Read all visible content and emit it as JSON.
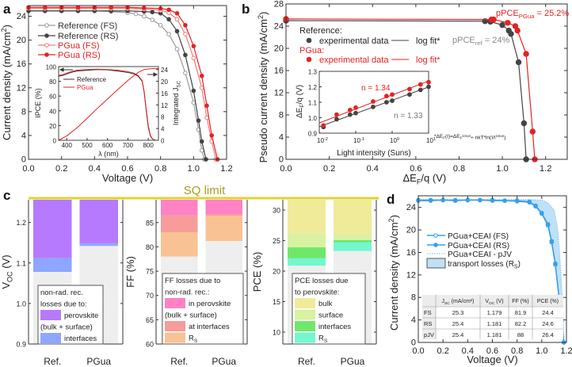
{
  "panel_labels": {
    "a": "a",
    "b": "b",
    "c": "c",
    "d": "d"
  },
  "colors": {
    "ref_fs": "#9a9a9a",
    "ref_rs": "#444444",
    "pgua_fs": "#f27b7b",
    "pgua_rs": "#e52222",
    "sq": "#e2d232",
    "sq_text": "#a8a020",
    "base": "#eeeeee",
    "voc_perovskite": "#b57aff",
    "voc_interfaces": "#8ea6ff",
    "ff_perovskite": "#ff82c4",
    "ff_interfaces": "#f89b9b",
    "ff_rs": "#f8c294",
    "pce_bulk": "#f0eb98",
    "pce_surface": "#d9f1a2",
    "pce_interfaces": "#6fe86a",
    "pce_rs": "#72f7cf",
    "d_line": "#37a0ea",
    "d_pjv": "#86c8f2",
    "d_fill": "#bfe1f8"
  },
  "chart_data": [
    {
      "id": "a",
      "type": "line",
      "xlabel": "Voltage (V)",
      "ylabel": "Current density (mA/cm²)",
      "xlim": [
        0,
        1.2
      ],
      "ylim": [
        0,
        25.8
      ],
      "xticks": [
        "0.0",
        "0.2",
        "0.4",
        "0.6",
        "0.8",
        "1.0",
        "1.2"
      ],
      "yticks": [
        "0",
        "4",
        "8",
        "12",
        "16",
        "20",
        "24"
      ],
      "series": [
        {
          "name": "Reference (FS)",
          "marker": "open-circle",
          "x": [
            0,
            0.1,
            0.2,
            0.3,
            0.4,
            0.5,
            0.6,
            0.65,
            0.7,
            0.75,
            0.8,
            0.85,
            0.9,
            0.95,
            1.0,
            1.03,
            1.05,
            1.065
          ],
          "y": [
            24.9,
            24.9,
            24.9,
            24.9,
            24.9,
            24.8,
            24.6,
            24.4,
            24.0,
            23.4,
            22.5,
            21.0,
            18.5,
            14.5,
            9.5,
            5.0,
            1.5,
            0
          ]
        },
        {
          "name": "Reference (RS)",
          "marker": "filled-circle",
          "x": [
            0,
            0.1,
            0.2,
            0.3,
            0.4,
            0.5,
            0.6,
            0.7,
            0.75,
            0.8,
            0.85,
            0.9,
            0.95,
            1.0,
            1.03,
            1.05,
            1.075
          ],
          "y": [
            24.9,
            24.9,
            24.9,
            24.9,
            24.9,
            24.9,
            24.9,
            24.8,
            24.7,
            24.5,
            23.5,
            21.5,
            17.5,
            11.5,
            6.5,
            3.0,
            0
          ]
        },
        {
          "name": "PGua (FS)",
          "marker": "open-circle",
          "x": [
            0,
            0.1,
            0.2,
            0.3,
            0.4,
            0.5,
            0.6,
            0.7,
            0.8,
            0.85,
            0.9,
            0.95,
            1.0,
            1.05,
            1.08,
            1.11,
            1.135
          ],
          "y": [
            25.3,
            25.3,
            25.3,
            25.3,
            25.3,
            25.3,
            25.3,
            25.2,
            25.0,
            24.6,
            23.5,
            21.0,
            17.0,
            12.0,
            7.0,
            3.0,
            0
          ]
        },
        {
          "name": "PGua (RS)",
          "marker": "filled-circle",
          "x": [
            0,
            0.1,
            0.2,
            0.3,
            0.4,
            0.5,
            0.6,
            0.7,
            0.8,
            0.85,
            0.9,
            0.95,
            1.0,
            1.05,
            1.08,
            1.11,
            1.145
          ],
          "y": [
            25.5,
            25.5,
            25.5,
            25.5,
            25.5,
            25.5,
            25.5,
            25.4,
            25.3,
            25.1,
            24.5,
            22.5,
            19.0,
            14.0,
            9.0,
            4.0,
            0
          ]
        }
      ],
      "inset": {
        "type": "line",
        "xlabel": "λ (nm)",
        "ylabel": "IPCE (%)",
        "y2label_main": "Integrated J",
        "y2label_sub": "SC",
        "xlim": [
          360,
          850
        ],
        "ylim": [
          0,
          100
        ],
        "y2lim": [
          0,
          25
        ],
        "xticks": [
          "400",
          "500",
          "600",
          "700",
          "800"
        ],
        "yticks": [
          "0",
          "20",
          "40",
          "60",
          "80",
          "100"
        ],
        "y2ticks": [
          "0",
          "4",
          "8",
          "12",
          "16",
          "20",
          "24"
        ],
        "series": [
          {
            "name": "Reference",
            "x": [
              360,
              380,
              420,
              450,
              500,
              550,
              600,
              650,
              700,
              730,
              750,
              770,
              780,
              790,
              800,
              810,
              820,
              835
            ],
            "y": [
              87,
              88,
              92,
              94,
              95,
              96,
              95.5,
              94,
              92,
              90,
              87,
              80,
              65,
              40,
              18,
              6,
              2,
              0
            ]
          },
          {
            "name": "PGua",
            "x": [
              360,
              380,
              420,
              450,
              500,
              550,
              600,
              650,
              700,
              730,
              750,
              770,
              780,
              790,
              800,
              810,
              820,
              835
            ],
            "y": [
              88,
              89,
              93,
              95,
              96,
              96.5,
              96,
              95,
              93,
              91,
              88,
              81,
              66,
              42,
              20,
              7,
              2,
              0
            ]
          },
          {
            "name": "Integrated PGua",
            "axis": "right",
            "x": [
              360,
              400,
              450,
              500,
              550,
              600,
              650,
              700,
              750,
              780,
              800,
              820,
              850
            ],
            "y": [
              0,
              1.5,
              4.2,
              7.5,
              10.8,
              14,
              17.2,
              20.3,
              23.0,
              24.0,
              24.2,
              24.3,
              24.3
            ]
          }
        ]
      }
    },
    {
      "id": "b",
      "type": "scatter+line",
      "xlabel_main": "ΔE",
      "xlabel_sub": "F",
      "xlabel_tail": "/q (V)",
      "ylabel": "Pseudo current density (mA/cm²)",
      "xlim": [
        0,
        1.3
      ],
      "ylim": [
        0,
        28
      ],
      "xticks": [
        "0.0",
        "0.2",
        "0.4",
        "0.6",
        "0.8",
        "1.0",
        "1.2"
      ],
      "yticks": [
        "0",
        "4",
        "8",
        "12",
        "16",
        "20",
        "24",
        "28"
      ],
      "legend": {
        "ref_title": "Reference:",
        "pgua_title": "PGua:",
        "exp": "experimental data",
        "fit": "log fit*"
      },
      "annotations": {
        "pgua_pre": "pPCE",
        "pgua_sub": "PGua",
        "pgua_post": " = 25.2%",
        "ref_pre": "pPCE",
        "ref_sub": "ref",
        "ref_post": " = 24%",
        "formula": "*ΔE_F(I)=ΔE_F^1Sun+ nkT*ln(I/I^1Sun)"
      },
      "series": [
        {
          "name": "Reference",
          "x": [
            0,
            0.92,
            0.945,
            1.0,
            1.03,
            1.04,
            1.075,
            1.1,
            1.11
          ],
          "y": [
            25,
            24.9,
            24.8,
            24.2,
            23.2,
            22.6,
            17.5,
            6.5,
            0
          ]
        },
        {
          "name": "PGua",
          "x": [
            0,
            0.95,
            0.96,
            1.025,
            1.06,
            1.07,
            1.11,
            1.14,
            1.15
          ],
          "y": [
            25.3,
            25.2,
            25.2,
            24.6,
            24.0,
            23.2,
            19.0,
            5.0,
            0
          ]
        }
      ],
      "inset": {
        "xlabel": "Light intensity (Suns)",
        "ylabel_main": "ΔE",
        "ylabel_sub": "F",
        "ylabel_tail": "/q (V)",
        "xscale": "log",
        "xlim": [
          0.01,
          10
        ],
        "ylim": [
          0.9,
          1.3
        ],
        "xticks": [
          {
            "b": "10",
            "e": "-2"
          },
          {
            "b": "10",
            "e": "-1"
          },
          {
            "b": "10",
            "e": "0"
          },
          {
            "b": "10",
            "e": "1"
          }
        ],
        "yticks": [
          "0.9",
          "1.0",
          "1.1",
          "1.2",
          "1.3"
        ],
        "n_pgua": "n = 1.34",
        "n_ref": "n = 1.33",
        "series": [
          {
            "name": "Reference",
            "x": [
              0.013,
              0.03,
              0.07,
              0.1,
              0.3,
              0.7,
              1,
              3,
              6,
              10
            ],
            "y": [
              0.94,
              0.99,
              1.02,
              1.03,
              1.07,
              1.1,
              1.11,
              1.15,
              1.18,
              1.2
            ]
          },
          {
            "name": "PGua",
            "x": [
              0.013,
              0.03,
              0.07,
              0.1,
              0.3,
              0.7,
              1,
              3,
              6,
              10
            ],
            "y": [
              0.95,
              1.02,
              1.05,
              1.065,
              1.105,
              1.14,
              1.15,
              1.185,
              1.215,
              1.23
            ]
          }
        ]
      }
    },
    {
      "id": "c",
      "type": "bar",
      "sq_label": "SQ limit",
      "categories": [
        "Ref.",
        "PGua"
      ],
      "subplots": [
        {
          "ylabel_main": "V",
          "ylabel_sub": "OC",
          "ylabel_tail": " (V)",
          "ylim": [
            0.9,
            1.256
          ],
          "yticks": [
            "0.9",
            "1.0",
            "1.1",
            "1.2"
          ],
          "base": [
            1.078,
            1.142
          ],
          "stacks": [
            {
              "name": "interfaces",
              "color_key": "voc_interfaces",
              "top": [
                1.112,
                1.148
              ]
            },
            {
              "name": "perovskite (bulk + surface)",
              "color_key": "voc_perovskite",
              "top": [
                1.256,
                1.256
              ]
            }
          ],
          "legend_title": [
            "non-rad. rec.",
            "losses due to:"
          ],
          "legend": [
            {
              "label": [
                "perovskite",
                "(bulk + surface)"
              ],
              "color_key": "voc_perovskite"
            },
            {
              "label": [
                "interfaces"
              ],
              "color_key": "voc_interfaces"
            }
          ]
        },
        {
          "ylabel": "FF (%)",
          "ylim": [
            60,
            89.7
          ],
          "yticks": [
            "60",
            "65",
            "70",
            "75",
            "80",
            "85"
          ],
          "base": [
            78.0,
            81.2
          ],
          "stacks": [
            {
              "name": "RS",
              "color_key": "ff_rs",
              "top": [
                83.0,
                86.4
              ]
            },
            {
              "name": "at interfaces",
              "color_key": "ff_interfaces",
              "top": [
                86.5,
                86.7
              ]
            },
            {
              "name": "in perovskite (bulk + surface)",
              "color_key": "ff_perovskite",
              "top": [
                89.7,
                89.7
              ]
            }
          ],
          "legend_title": [
            "FF losses due to",
            "non-rad. rec.:"
          ],
          "legend": [
            {
              "label": [
                "in perovskite",
                "(bulk + surface)"
              ],
              "color_key": "ff_perovskite"
            },
            {
              "label": [
                "at interfaces"
              ],
              "color_key": "ff_interfaces"
            },
            {
              "label": [
                "R"
              ],
              "sub": "S",
              "color_key": "ff_rs"
            }
          ]
        },
        {
          "ylabel": "PCE (%)",
          "ylim": [
            8.05,
            31.7
          ],
          "yticks": [
            "10",
            "15",
            "20",
            "25",
            "30"
          ],
          "base": [
            20.9,
            23.3
          ],
          "stacks": [
            {
              "name": "RS",
              "color_key": "pce_rs",
              "top": [
                22.1,
                24.7
              ]
            },
            {
              "name": "interfaces",
              "color_key": "pce_interfaces",
              "top": [
                23.9,
                25.1
              ]
            },
            {
              "name": "surface",
              "color_key": "pce_surface",
              "top": [
                26.2,
                26.1
              ]
            },
            {
              "name": "bulk",
              "color_key": "pce_bulk",
              "top": [
                31.7,
                31.7
              ]
            }
          ],
          "legend_title": [
            "PCE losses due",
            "to perovskite:"
          ],
          "legend": [
            {
              "label": [
                "bulk"
              ],
              "color_key": "pce_bulk"
            },
            {
              "label": [
                "surface"
              ],
              "color_key": "pce_surface"
            },
            {
              "label": [
                "interfaces"
              ],
              "color_key": "pce_interfaces"
            },
            {
              "label": [
                "R"
              ],
              "sub": "S",
              "color_key": "pce_rs"
            }
          ]
        }
      ]
    },
    {
      "id": "d",
      "type": "line",
      "xlabel": "Voltage (V)",
      "ylabel": "Current density (mA/cm²)",
      "xlim": [
        0,
        1.2
      ],
      "ylim": [
        0,
        26.07
      ],
      "xticks": [
        "0.0",
        "0.2",
        "0.4",
        "0.6",
        "0.8",
        "1.0",
        "1.2"
      ],
      "yticks": [
        "0",
        "4",
        "8",
        "12",
        "16",
        "20",
        "24"
      ],
      "legend": [
        {
          "label": "PGua+CEAI (FS)"
        },
        {
          "label": "PGua+CEAI (RS)"
        },
        {
          "label": "PGua+CEAI - pJV"
        },
        {
          "label": "transport losses (R",
          "sub": "S",
          "tail": ")"
        }
      ],
      "series": [
        {
          "name": "PGua+CEAI (FS)",
          "marker": "open-circle",
          "x": [
            0,
            0.1,
            0.2,
            0.3,
            0.4,
            0.5,
            0.6,
            0.7,
            0.8,
            0.9,
            0.95,
            1.0,
            1.05,
            1.08,
            1.11,
            1.14,
            1.16,
            1.178
          ],
          "y": [
            25.2,
            25.2,
            25.3,
            25.2,
            25.3,
            25.3,
            25.2,
            25.2,
            25.1,
            24.9,
            24.2,
            22.9,
            20.8,
            17.8,
            13.8,
            7.8,
            3.8,
            0
          ]
        },
        {
          "name": "PGua+CEAI (RS)",
          "marker": "filled-circle",
          "x": [
            0,
            0.1,
            0.2,
            0.3,
            0.4,
            0.5,
            0.6,
            0.7,
            0.8,
            0.9,
            0.95,
            1.0,
            1.05,
            1.08,
            1.11,
            1.14,
            1.16,
            1.18
          ],
          "y": [
            25.3,
            25.3,
            25.3,
            25.3,
            25.3,
            25.3,
            25.3,
            25.2,
            25.2,
            25.0,
            24.3,
            23.0,
            21.0,
            18.0,
            14.0,
            8.0,
            4.0,
            0
          ]
        },
        {
          "name": "PGua+CEAI - pJV",
          "marker": "none",
          "x": [
            0,
            0.5,
            0.9,
            1.0,
            1.05,
            1.1,
            1.13,
            1.15,
            1.17,
            1.181
          ],
          "y": [
            25.4,
            25.4,
            25.4,
            25.3,
            24.8,
            23.5,
            20.0,
            14.0,
            6.0,
            0
          ]
        }
      ],
      "table": {
        "header": [
          "",
          "J_SC (mA/cm²)",
          "V_OC (V)",
          "FF (%)",
          "PCE (%)"
        ],
        "header_main": [
          "",
          "J",
          "V",
          "FF (%)",
          "PCE (%)"
        ],
        "header_sub": [
          "",
          "SC",
          "OC",
          "",
          ""
        ],
        "header_tail": [
          "",
          " (mA/cm²)",
          " (V)",
          "",
          ""
        ],
        "rows": [
          [
            "FS",
            "25.3",
            "1.179",
            "81.9",
            "24.4"
          ],
          [
            "RS",
            "25.4",
            "1.181",
            "82.2",
            "24.6"
          ],
          [
            "pJV",
            "25.4",
            "1.181",
            "88",
            "26.4"
          ]
        ]
      }
    }
  ]
}
